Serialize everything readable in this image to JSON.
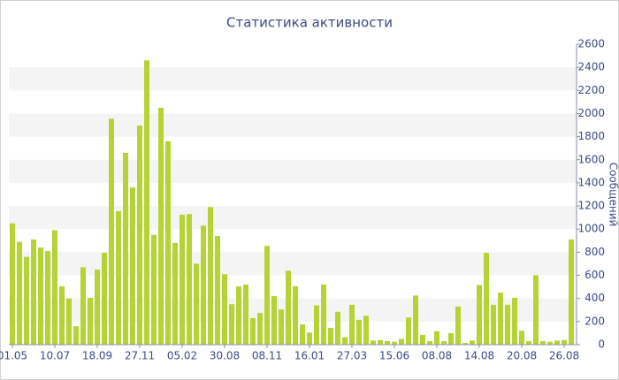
{
  "chart_data": {
    "type": "bar",
    "title": "Статистика активности",
    "y_label": "Сообщений",
    "categories": [
      "01.05",
      null,
      null,
      null,
      null,
      null,
      "10.07",
      null,
      null,
      null,
      null,
      null,
      "18.09",
      null,
      null,
      null,
      null,
      null,
      "27.11",
      null,
      null,
      null,
      null,
      null,
      "05.02",
      null,
      null,
      null,
      null,
      null,
      "30.08",
      null,
      null,
      null,
      null,
      null,
      "08.11",
      null,
      null,
      null,
      null,
      null,
      "16.01",
      null,
      null,
      null,
      null,
      null,
      "27.03",
      null,
      null,
      null,
      null,
      null,
      "15.06",
      null,
      null,
      null,
      null,
      null,
      "08.08",
      null,
      null,
      null,
      null,
      null,
      "14.08",
      null,
      null,
      null,
      null,
      null,
      "20.08",
      null,
      null,
      null,
      null,
      null,
      "26.08",
      null
    ],
    "values": [
      1050,
      890,
      760,
      910,
      840,
      810,
      990,
      505,
      400,
      160,
      670,
      405,
      650,
      795,
      1955,
      1155,
      1660,
      1360,
      1895,
      2460,
      950,
      2050,
      1760,
      880,
      1125,
      1130,
      700,
      1030,
      1190,
      940,
      610,
      350,
      505,
      520,
      230,
      275,
      855,
      420,
      305,
      640,
      505,
      175,
      105,
      340,
      520,
      145,
      285,
      65,
      345,
      215,
      250,
      35,
      40,
      30,
      25,
      50,
      235,
      425,
      85,
      30,
      115,
      30,
      100,
      330,
      15,
      35,
      515,
      795,
      345,
      450,
      345,
      405,
      120,
      30,
      600,
      30,
      25,
      35,
      40,
      910
    ],
    "color": "#b5d334",
    "ylim": [
      0,
      2600
    ],
    "yticks": [
      0,
      200,
      400,
      600,
      800,
      1000,
      1200,
      1400,
      1600,
      1800,
      2000,
      2200,
      2400,
      2600
    ],
    "grid": true
  }
}
